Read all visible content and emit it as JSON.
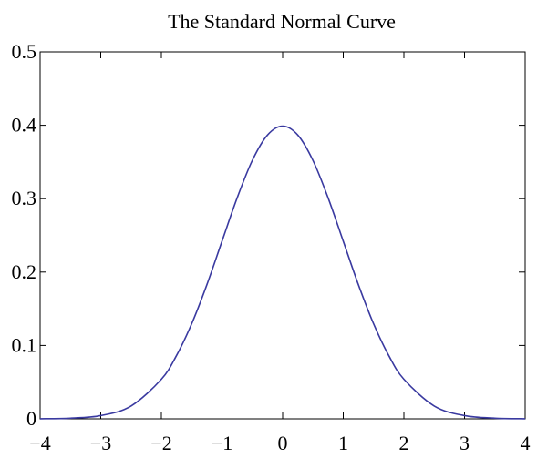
{
  "chart_data": {
    "type": "line",
    "title": "The Standard Normal Curve",
    "xlabel": "",
    "ylabel": "",
    "xlim": [
      -4,
      4
    ],
    "ylim": [
      0,
      0.5
    ],
    "grid": false,
    "x_ticks": [
      -4,
      -3,
      -2,
      -1,
      0,
      1,
      2,
      3,
      4
    ],
    "x_tick_labels": [
      "−4",
      "−3",
      "−2",
      "−1",
      "0",
      "1",
      "2",
      "3",
      "4"
    ],
    "y_ticks": [
      0,
      0.1,
      0.2,
      0.3,
      0.4,
      0.5
    ],
    "y_tick_labels": [
      "0",
      "0.1",
      "0.2",
      "0.3",
      "0.4",
      "0.5"
    ],
    "series": [
      {
        "color": "#3a3aa0",
        "x": [
          -4,
          -3.5,
          -3,
          -2.5,
          -2,
          -1.75,
          -1.5,
          -1.25,
          -1,
          -0.75,
          -0.5,
          -0.25,
          0,
          0.25,
          0.5,
          0.75,
          1,
          1.25,
          1.5,
          1.75,
          2,
          2.5,
          3,
          3.5,
          4
        ],
        "y": [
          0.0001,
          0.0009,
          0.0044,
          0.0175,
          0.054,
          0.0863,
          0.1295,
          0.1826,
          0.242,
          0.3011,
          0.3521,
          0.3867,
          0.3989,
          0.3867,
          0.3521,
          0.3011,
          0.242,
          0.1826,
          0.1295,
          0.0863,
          0.054,
          0.0175,
          0.0044,
          0.0009,
          0.0001
        ]
      }
    ]
  }
}
